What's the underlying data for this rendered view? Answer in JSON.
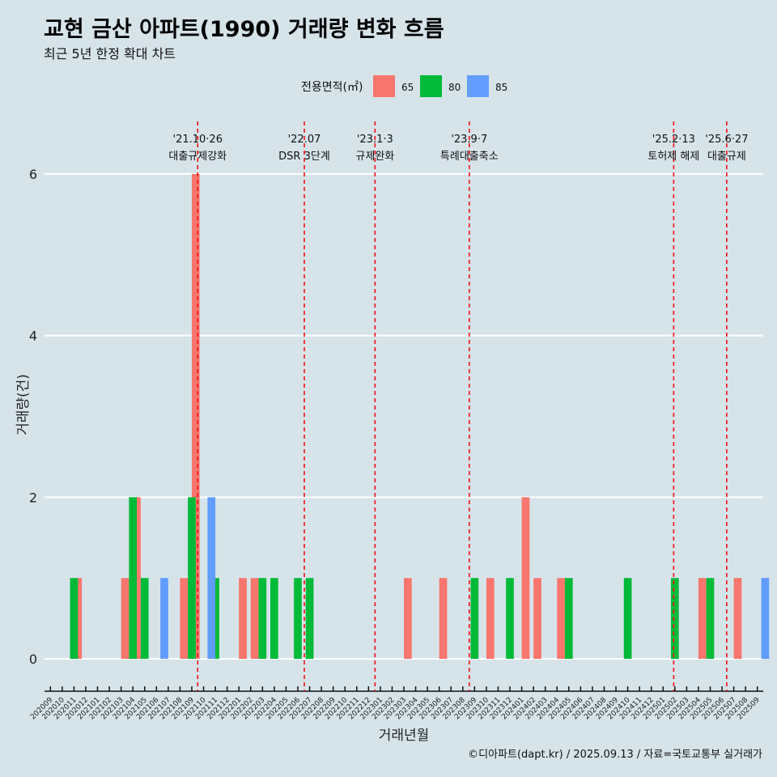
{
  "title": "교현 금산 아파트(1990) 거래량 변화 흐름",
  "subtitle": "최근 5년 한정 확대 차트",
  "caption": "©디아파트(dapt.kr) / 2025.09.13 / 자료=국토교통부 실거래가",
  "colors": {
    "background": "#d6e4ea",
    "s65": "#f8766d",
    "s80": "#00ba38",
    "s85": "#619cff",
    "event_line": "#ee1111",
    "grid": "#ffffff"
  },
  "chart_data": {
    "type": "bar",
    "title": "교현 금산 아파트(1990) 거래량 변화 흐름",
    "xlabel": "거래년월",
    "ylabel": "거래량(건)",
    "ylim": [
      -0.28,
      6.65
    ],
    "yticks": [
      0,
      2,
      4,
      6
    ],
    "legend": {
      "title": "전용면적(㎡)",
      "position": "top"
    },
    "categories": [
      "202009",
      "202010",
      "202011",
      "202012",
      "202101",
      "202102",
      "202103",
      "202104",
      "202105",
      "202106",
      "202107",
      "202108",
      "202109",
      "202110",
      "202111",
      "202112",
      "202201",
      "202202",
      "202203",
      "202204",
      "202205",
      "202206",
      "202207",
      "202208",
      "202209",
      "202210",
      "202211",
      "202212",
      "202301",
      "202302",
      "202303",
      "202304",
      "202305",
      "202306",
      "202307",
      "202308",
      "202309",
      "202310",
      "202311",
      "202312",
      "202401",
      "202402",
      "202403",
      "202404",
      "202405",
      "202406",
      "202407",
      "202408",
      "202409",
      "202410",
      "202411",
      "202412",
      "202501",
      "202502",
      "202503",
      "202504",
      "202505",
      "202506",
      "202507",
      "202508",
      "202509"
    ],
    "series": [
      {
        "name": "65",
        "values": [
          0,
          0,
          0,
          1,
          0,
          0,
          0,
          1,
          2,
          0,
          0,
          0,
          1,
          6,
          0,
          0,
          0,
          1,
          1,
          0,
          0,
          0,
          0,
          0,
          0,
          0,
          0,
          0,
          0,
          0,
          0,
          1,
          0,
          0,
          1,
          0,
          0,
          0,
          1,
          0,
          0,
          2,
          1,
          0,
          1,
          0,
          0,
          0,
          0,
          0,
          0,
          0,
          0,
          0,
          0,
          0,
          1,
          0,
          0,
          1,
          0
        ]
      },
      {
        "name": "80",
        "values": [
          0,
          0,
          1,
          0,
          0,
          0,
          0,
          2,
          1,
          0,
          0,
          0,
          2,
          0,
          1,
          0,
          0,
          0,
          1,
          1,
          0,
          1,
          1,
          0,
          0,
          0,
          0,
          0,
          0,
          0,
          0,
          0,
          0,
          0,
          0,
          0,
          1,
          0,
          0,
          1,
          0,
          0,
          0,
          0,
          1,
          0,
          0,
          0,
          0,
          1,
          0,
          0,
          0,
          1,
          0,
          0,
          1,
          0,
          0,
          0,
          0
        ]
      },
      {
        "name": "85",
        "values": [
          0,
          0,
          0,
          0,
          0,
          0,
          0,
          0,
          0,
          1,
          0,
          0,
          0,
          2,
          0,
          0,
          0,
          0,
          0,
          0,
          0,
          0,
          0,
          0,
          0,
          0,
          0,
          0,
          0,
          0,
          0,
          0,
          0,
          0,
          0,
          0,
          0,
          0,
          0,
          0,
          0,
          0,
          0,
          0,
          0,
          0,
          0,
          0,
          0,
          0,
          0,
          0,
          0,
          0,
          0,
          0,
          0,
          0,
          0,
          0,
          1
        ]
      }
    ],
    "events": [
      {
        "at": 13.0,
        "date": "'21.10·26",
        "label": "대출규제강화"
      },
      {
        "at": 22.05,
        "date": "'22.07",
        "label": "DSR 3단계"
      },
      {
        "at": 28.05,
        "date": "'23.1·3",
        "label": "규제완화"
      },
      {
        "at": 36.05,
        "date": "'23.9·7",
        "label": "특례대출축소"
      },
      {
        "at": 53.4,
        "date": "'25.2·13",
        "label": "토허제 해제"
      },
      {
        "at": 57.9,
        "date": "'25.6·27",
        "label": "대출규제"
      }
    ]
  }
}
